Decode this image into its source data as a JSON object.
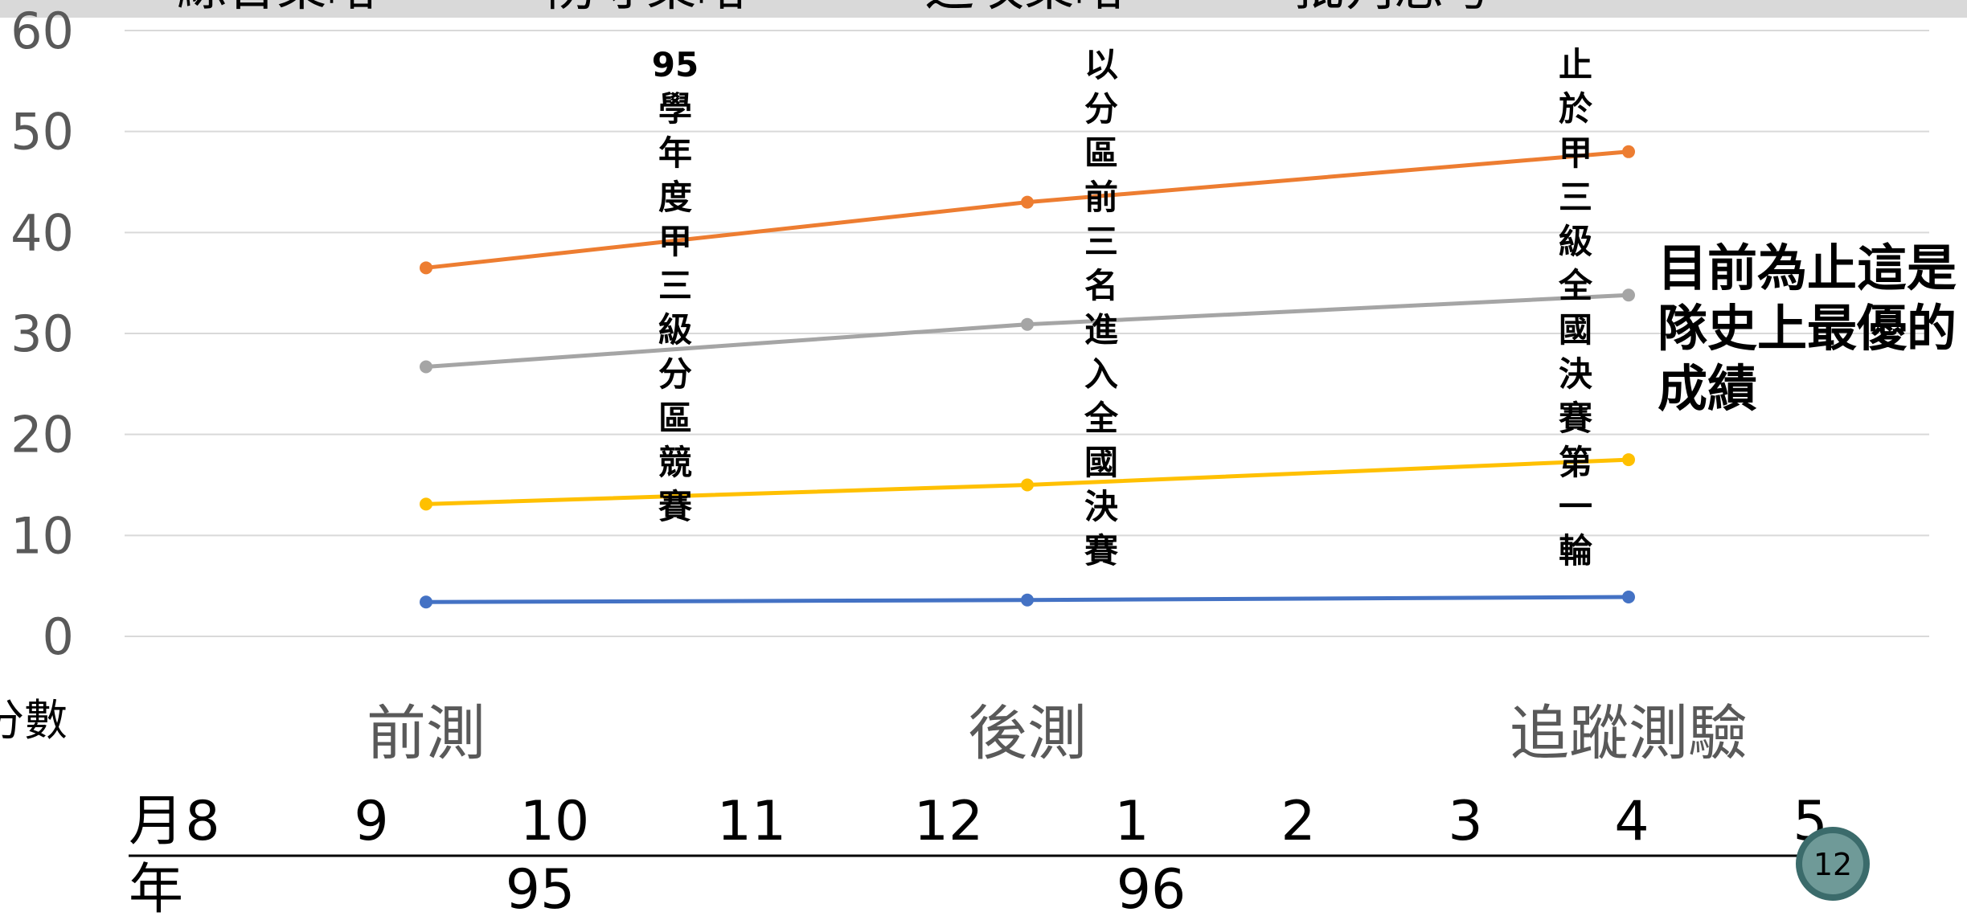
{
  "chart_data": {
    "type": "line",
    "ylabel": "分數",
    "ylim": [
      0,
      60
    ],
    "yticks": [
      "0",
      "10",
      "20",
      "30",
      "40",
      "50",
      "60"
    ],
    "categories": [
      "前測",
      "後測",
      "追蹤測驗"
    ],
    "series": [
      {
        "name": "綜合策略",
        "color": "#ED7D31",
        "values": [
          36.5,
          43,
          48
        ]
      },
      {
        "name": "防守策略",
        "color": "#A5A5A5",
        "values": [
          26.7,
          30.9,
          33.8
        ]
      },
      {
        "name": "進攻策略",
        "color": "#FFC000",
        "values": [
          13.1,
          15,
          17.5
        ]
      },
      {
        "name": "批判思考",
        "color": "#4472C4",
        "values": [
          3.4,
          3.6,
          3.9
        ]
      }
    ],
    "annotations": [
      {
        "text": "95學年度甲三級分區競賽",
        "at": "前測-後測"
      },
      {
        "text": "以分區前三名進入全國決賽",
        "at": "後測"
      },
      {
        "text": "止於甲三級全國決賽第一輪",
        "at": "追蹤測驗"
      }
    ],
    "side_note": [
      "目前為止這是",
      "隊史上最優的",
      "成績"
    ],
    "legend_position": "top",
    "grid": true,
    "timeline": {
      "month_label": "月",
      "months": [
        "8",
        "9",
        "10",
        "11",
        "12",
        "1",
        "2",
        "3",
        "4",
        "5"
      ],
      "year_label": "年",
      "years": [
        "95",
        "96"
      ]
    }
  },
  "slide_number": "12"
}
